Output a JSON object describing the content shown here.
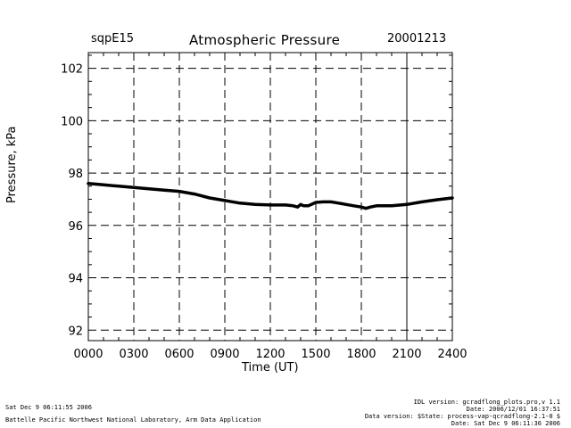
{
  "header": {
    "site": "sqpE15",
    "title": "Atmospheric Pressure",
    "date": "20001213"
  },
  "chart_data": {
    "type": "line",
    "title": "Atmospheric Pressure",
    "xlabel": "Time (UT)",
    "ylabel": "Pressure, kPa",
    "xlim": [
      0,
      2400
    ],
    "ylim": [
      91.6,
      102.6
    ],
    "x_ticks": [
      "0000",
      "0300",
      "0600",
      "0900",
      "1200",
      "1500",
      "1800",
      "2100",
      "2400"
    ],
    "x_tick_values": [
      0,
      300,
      600,
      900,
      1200,
      1500,
      1800,
      2100,
      2400
    ],
    "y_ticks": [
      "92",
      "94",
      "96",
      "98",
      "100",
      "102"
    ],
    "y_tick_values": [
      92,
      94,
      96,
      98,
      100,
      102
    ],
    "grid": "dashed",
    "series": [
      {
        "color": "#000000",
        "x": [
          0,
          100,
          200,
          300,
          400,
          500,
          600,
          700,
          800,
          900,
          1000,
          1100,
          1200,
          1250,
          1300,
          1350,
          1380,
          1400,
          1420,
          1450,
          1500,
          1550,
          1600,
          1650,
          1700,
          1750,
          1800,
          1830,
          1860,
          1900,
          2000,
          2100,
          2200,
          2300,
          2400
        ],
        "y": [
          97.6,
          97.55,
          97.5,
          97.45,
          97.4,
          97.35,
          97.3,
          97.2,
          97.05,
          96.95,
          96.85,
          96.8,
          96.78,
          96.78,
          96.78,
          96.75,
          96.7,
          96.8,
          96.75,
          96.75,
          96.88,
          96.9,
          96.9,
          96.85,
          96.8,
          96.75,
          96.7,
          96.65,
          96.7,
          96.75,
          96.75,
          96.8,
          96.9,
          96.98,
          97.05
        ]
      }
    ]
  },
  "footer": {
    "left_line1": "Sat Dec  9 06:11:55 2006",
    "left_line2": "Battelle Pacific Northwest National Laboratory, Arm Data Application",
    "right_line1": "IDL version: gcradflong_plots.pro,v 1.1",
    "right_line2": "Date: 2006/12/01 16:37:51",
    "right_line3": "Data version: $State: process-vap-qcradflong-2.1-0 $",
    "right_line4": "Date: Sat Dec  9 06:11:36 2006"
  }
}
